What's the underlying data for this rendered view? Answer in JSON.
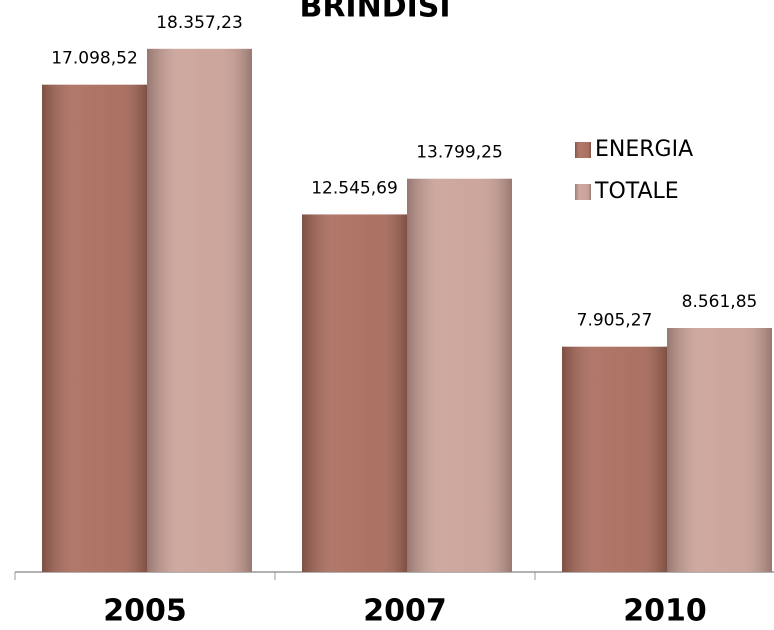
{
  "chart_data": {
    "type": "bar",
    "title": "BRINDISI",
    "categories": [
      "2005",
      "2007",
      "2010"
    ],
    "series": [
      {
        "name": "ENERGIA",
        "color": "#a86a5a",
        "values": [
          17098.52,
          12545.69,
          7905.27
        ],
        "value_labels": [
          "17.098,52",
          "12.545,69",
          "7.905,27"
        ]
      },
      {
        "name": "TOTALE",
        "color": "#c9a096",
        "values": [
          18357.23,
          13799.25,
          8561.85
        ],
        "value_labels": [
          "18.357,23",
          "13.799,25",
          "8.561,85"
        ]
      }
    ],
    "ylim": [
      0,
      20000
    ],
    "legend": "right"
  }
}
